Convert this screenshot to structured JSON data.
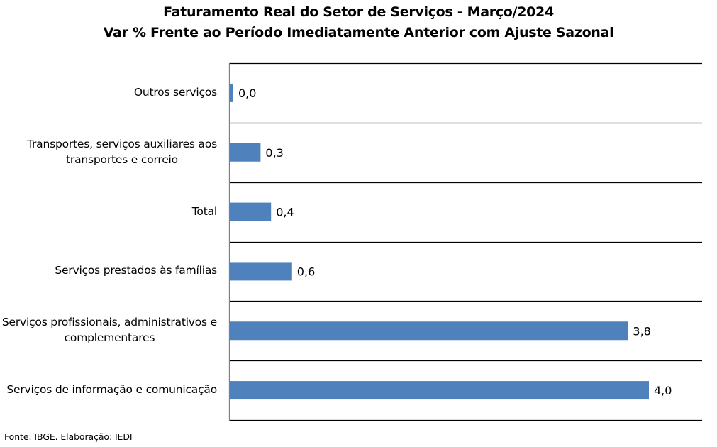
{
  "chart_data": {
    "type": "bar",
    "orientation": "horizontal",
    "title": "Faturamento Real do Setor de Serviços - Março/2024",
    "subtitle": "Var % Frente ao Período Imediatamente Anterior com Ajuste Sazonal",
    "xlabel": "",
    "ylabel": "",
    "categories": [
      [
        "Outros serviços"
      ],
      [
        "Transportes, serviços auxiliares aos",
        "transportes e correio"
      ],
      [
        "Total"
      ],
      [
        "Serviços prestados às famílias"
      ],
      [
        "Serviços profissionais, administrativos e",
        "complementares"
      ],
      [
        "Serviços de informação e comunicação"
      ]
    ],
    "values": [
      0.0,
      0.3,
      0.4,
      0.6,
      3.8,
      4.0
    ],
    "data_labels": [
      "0,0",
      "0,3",
      "0,4",
      "0,6",
      "3,8",
      "4,0"
    ],
    "xlim": [
      0,
      4.5
    ],
    "grid": "horizontal separators",
    "legend": "none",
    "bar_color": "#4F81BD"
  },
  "footer": {
    "source": "Fonte: IBGE. Elaboração: IEDI"
  }
}
